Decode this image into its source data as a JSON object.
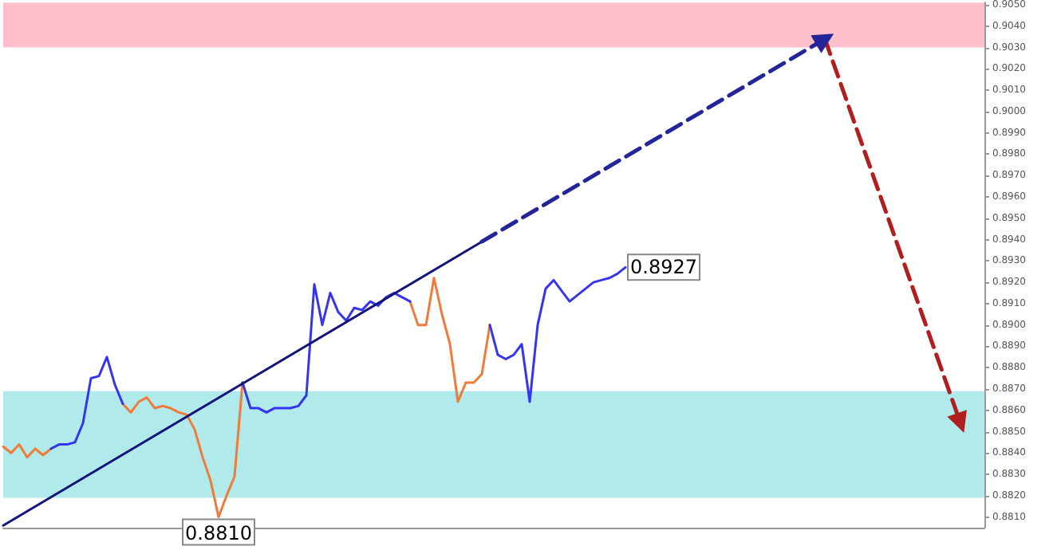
{
  "chart_data": {
    "type": "line",
    "tick_labels": "y",
    "grid": false,
    "categories": [
      null,
      null,
      null,
      null,
      null,
      null,
      null,
      null,
      null,
      null,
      null,
      null,
      null,
      null,
      null,
      null,
      null,
      null,
      null,
      null,
      null,
      null,
      null,
      null,
      null,
      null,
      null,
      null,
      null,
      null,
      null,
      null,
      null,
      null,
      null,
      null,
      null,
      null,
      null,
      null,
      null,
      null,
      null,
      null,
      null,
      null,
      null,
      null,
      null,
      null,
      null,
      null,
      null,
      null,
      null,
      null,
      null,
      null,
      null,
      null,
      null,
      null,
      null,
      null,
      null,
      null,
      null,
      null,
      null,
      null,
      null,
      null,
      null,
      null,
      null,
      null,
      null,
      null,
      null,
      null,
      null,
      null,
      null,
      null,
      null,
      null,
      null,
      null,
      null,
      null,
      null,
      null,
      null,
      null,
      null,
      null,
      null,
      null,
      null,
      null,
      null,
      null,
      null,
      null,
      null,
      null,
      null,
      null,
      null,
      null,
      null,
      null,
      null,
      null,
      null,
      null,
      null,
      null,
      null,
      null,
      null,
      null,
      null,
      null
    ],
    "ylim": [
      0.8805,
      0.9051
    ],
    "yticks": [
      {
        "value": 0.881,
        "label": "0.8810"
      },
      {
        "value": 0.882,
        "label": "0.8820"
      },
      {
        "value": 0.883,
        "label": "0.8830"
      },
      {
        "value": 0.884,
        "label": "0.8840"
      },
      {
        "value": 0.885,
        "label": "0.8850"
      },
      {
        "value": 0.886,
        "label": "0.8860"
      },
      {
        "value": 0.887,
        "label": "0.8870"
      },
      {
        "value": 0.888,
        "label": "0.8880"
      },
      {
        "value": 0.889,
        "label": "0.8890"
      },
      {
        "value": 0.89,
        "label": "0.8900"
      },
      {
        "value": 0.891,
        "label": "0.8910"
      },
      {
        "value": 0.892,
        "label": "0.8920"
      },
      {
        "value": 0.893,
        "label": "0.8930"
      },
      {
        "value": 0.894,
        "label": "0.8940"
      },
      {
        "value": 0.895,
        "label": "0.8950"
      },
      {
        "value": 0.896,
        "label": "0.8960"
      },
      {
        "value": 0.897,
        "label": "0.8970"
      },
      {
        "value": 0.898,
        "label": "0.8980"
      },
      {
        "value": 0.899,
        "label": "0.8990"
      },
      {
        "value": 0.9,
        "label": "0.9000"
      },
      {
        "value": 0.901,
        "label": "0.9010"
      },
      {
        "value": 0.902,
        "label": "0.9020"
      },
      {
        "value": 0.903,
        "label": "0.9030"
      },
      {
        "value": 0.904,
        "label": "0.9040"
      },
      {
        "value": 0.905,
        "label": "0.9050"
      }
    ],
    "bands": [
      {
        "axis": "y",
        "from": 0.903,
        "to": 0.9051,
        "color": "#ffc0cb"
      },
      {
        "axis": "y",
        "from": 0.8819,
        "to": 0.8869,
        "color": "#b0eaea"
      }
    ],
    "series": [
      {
        "color": "#f07a3a",
        "line_style": "solid",
        "marker": "none",
        "values": [
          0.8843,
          0.884,
          0.8844,
          0.8838,
          0.8842,
          0.8839,
          0.8842,
          null,
          null,
          null,
          null,
          null,
          null,
          null,
          null,
          0.8863,
          0.8859,
          0.8864,
          0.8866,
          0.8861,
          0.8862,
          0.8861,
          0.8859,
          0.8858,
          0.8851,
          0.8838,
          0.8827,
          0.881,
          0.882,
          0.8829,
          0.8873,
          null,
          null,
          null,
          null,
          null,
          null,
          null,
          null,
          null,
          null,
          null,
          null,
          null,
          null,
          null,
          null,
          null,
          null,
          null,
          null,
          0.8911,
          0.89,
          0.89,
          0.8922,
          0.8905,
          0.8891,
          0.8864,
          0.8873,
          0.8873,
          0.8877,
          0.89,
          null,
          null,
          null,
          null,
          null,
          null,
          null,
          null,
          null,
          null,
          null,
          null,
          null,
          null,
          null,
          null,
          null,
          null,
          null,
          null,
          null,
          null,
          null,
          null,
          null,
          null,
          null,
          null,
          null,
          null,
          null,
          null,
          null,
          null,
          null,
          null,
          null,
          null,
          null,
          null,
          null,
          null,
          null,
          null,
          null,
          null,
          null,
          null,
          null,
          null,
          null,
          null,
          null,
          null,
          null,
          null,
          null,
          null,
          null,
          null,
          null,
          null
        ],
        "value_labels": [
          null,
          null,
          null,
          null,
          null,
          null,
          null,
          null,
          null,
          null,
          null,
          null,
          null,
          null,
          null,
          null,
          null,
          null,
          null,
          null,
          null,
          null,
          null,
          null,
          null,
          null,
          null,
          "0.8810",
          null,
          null,
          null,
          null,
          null,
          null,
          null,
          null,
          null,
          null,
          null,
          null,
          null,
          null,
          null,
          null,
          null,
          null,
          null,
          null,
          null,
          null,
          null,
          null,
          null,
          null,
          null,
          null,
          null,
          null,
          null,
          null,
          null,
          null,
          null,
          null,
          null,
          null,
          null,
          null,
          null,
          null,
          null,
          null,
          null,
          null,
          null,
          null,
          null,
          null,
          null,
          null,
          null,
          null,
          null,
          null,
          null,
          null,
          null,
          null,
          null,
          null,
          null,
          null,
          null,
          null,
          null,
          null,
          null,
          null,
          null,
          null,
          null,
          null,
          null,
          null,
          null,
          null,
          null,
          null,
          null,
          null,
          null,
          null,
          null,
          null,
          null,
          null,
          null,
          null,
          null,
          null,
          null,
          null,
          null,
          null
        ]
      },
      {
        "color": "#3535f0",
        "line_style": "solid",
        "marker": "none",
        "values": [
          null,
          null,
          null,
          null,
          null,
          null,
          0.8842,
          0.8844,
          0.8844,
          0.8845,
          0.8854,
          0.8875,
          0.8876,
          0.8885,
          0.8872,
          0.8863,
          null,
          null,
          null,
          null,
          null,
          null,
          null,
          null,
          null,
          null,
          null,
          null,
          null,
          null,
          0.8873,
          0.8861,
          0.8861,
          0.8859,
          0.8861,
          0.8861,
          0.8861,
          0.8862,
          0.8867,
          0.8919,
          0.89,
          0.8915,
          0.8906,
          0.8902,
          0.8908,
          0.8907,
          0.8911,
          0.8909,
          0.8913,
          0.8915,
          0.8913,
          0.8911,
          null,
          null,
          null,
          null,
          null,
          null,
          null,
          null,
          null,
          0.89,
          0.8886,
          0.8884,
          0.8886,
          0.8891,
          0.8864,
          0.89,
          0.8917,
          0.8921,
          0.8916,
          0.8911,
          0.8914,
          0.8917,
          0.892,
          0.8921,
          0.8922,
          0.8924,
          0.8927,
          null,
          null,
          null,
          null,
          null,
          null,
          null,
          null,
          null,
          null,
          null,
          null,
          null,
          null,
          null,
          null,
          null,
          null,
          null,
          null,
          null,
          null,
          null,
          null,
          null,
          null,
          null,
          null,
          null,
          null,
          null,
          null,
          null,
          null,
          null,
          null,
          null,
          null,
          null,
          null,
          null,
          null,
          null,
          null,
          null
        ],
        "value_labels": [
          null,
          null,
          null,
          null,
          null,
          null,
          null,
          null,
          null,
          null,
          null,
          null,
          null,
          null,
          null,
          null,
          null,
          null,
          null,
          null,
          null,
          null,
          null,
          null,
          null,
          null,
          null,
          null,
          null,
          null,
          null,
          null,
          null,
          null,
          null,
          null,
          null,
          null,
          null,
          null,
          null,
          null,
          null,
          null,
          null,
          null,
          null,
          null,
          null,
          null,
          null,
          null,
          null,
          null,
          null,
          null,
          null,
          null,
          null,
          null,
          null,
          null,
          null,
          null,
          null,
          null,
          null,
          null,
          null,
          null,
          null,
          null,
          null,
          null,
          null,
          null,
          null,
          null,
          "0.8927",
          null,
          null,
          null,
          null,
          null,
          null,
          null,
          null,
          null,
          null,
          null,
          null,
          null,
          null,
          null,
          null,
          null,
          null,
          null,
          null,
          null,
          null,
          null,
          null,
          null,
          null,
          null,
          null,
          null,
          null,
          null,
          null,
          null,
          null,
          null,
          null,
          null,
          null,
          null,
          null,
          null,
          null,
          null,
          null,
          null
        ]
      },
      {
        "color": "#14147a",
        "line_style": "solid",
        "marker": "none",
        "values": [
          0.8806,
          null,
          null,
          null,
          null,
          null,
          null,
          null,
          null,
          null,
          null,
          null,
          null,
          null,
          null,
          null,
          null,
          null,
          null,
          null,
          null,
          null,
          null,
          null,
          null,
          null,
          null,
          null,
          null,
          null,
          null,
          null,
          null,
          null,
          null,
          null,
          null,
          null,
          null,
          null,
          null,
          null,
          null,
          null,
          null,
          null,
          null,
          null,
          null,
          null,
          null,
          null,
          null,
          null,
          null,
          null,
          null,
          null,
          null,
          null,
          0.8939,
          null,
          null,
          null,
          null,
          null,
          null,
          null,
          null,
          null,
          null,
          null,
          null,
          null,
          null,
          null,
          null,
          null,
          null,
          null,
          null,
          null,
          null,
          null,
          null,
          null,
          null,
          null,
          null,
          null,
          null,
          null,
          null,
          null,
          null,
          null,
          null,
          null,
          null,
          null,
          null,
          null,
          null,
          null,
          null,
          null,
          null,
          null,
          null,
          null,
          null,
          null,
          null,
          null,
          null,
          null,
          null,
          null,
          null,
          null,
          null,
          null,
          null,
          null
        ]
      },
      {
        "color": "#25259a",
        "line_style": "dashed",
        "marker": "triangle",
        "values": [
          null,
          null,
          null,
          null,
          null,
          null,
          null,
          null,
          null,
          null,
          null,
          null,
          null,
          null,
          null,
          null,
          null,
          null,
          null,
          null,
          null,
          null,
          null,
          null,
          null,
          null,
          null,
          null,
          null,
          null,
          null,
          null,
          null,
          null,
          null,
          null,
          null,
          null,
          null,
          null,
          null,
          null,
          null,
          null,
          null,
          null,
          null,
          null,
          null,
          null,
          null,
          null,
          null,
          null,
          null,
          null,
          null,
          null,
          null,
          null,
          0.8939,
          null,
          null,
          null,
          null,
          null,
          null,
          null,
          null,
          null,
          null,
          null,
          null,
          null,
          null,
          null,
          null,
          null,
          null,
          null,
          null,
          null,
          null,
          null,
          null,
          null,
          null,
          null,
          null,
          null,
          null,
          null,
          null,
          null,
          null,
          null,
          null,
          null,
          null,
          null,
          null,
          null,
          null,
          0.9034,
          null,
          null,
          null,
          null,
          null,
          null,
          null,
          null,
          null,
          null,
          null,
          null,
          null,
          null,
          null,
          null,
          null,
          null,
          null,
          null
        ]
      },
      {
        "color": "#b01e1e",
        "line_style": "dashed",
        "marker": "triangle",
        "values": [
          null,
          null,
          null,
          null,
          null,
          null,
          null,
          null,
          null,
          null,
          null,
          null,
          null,
          null,
          null,
          null,
          null,
          null,
          null,
          null,
          null,
          null,
          null,
          null,
          null,
          null,
          null,
          null,
          null,
          null,
          null,
          null,
          null,
          null,
          null,
          null,
          null,
          null,
          null,
          null,
          null,
          null,
          null,
          null,
          null,
          null,
          null,
          null,
          null,
          null,
          null,
          null,
          null,
          null,
          null,
          null,
          null,
          null,
          null,
          null,
          null,
          null,
          null,
          null,
          null,
          null,
          null,
          null,
          null,
          null,
          null,
          null,
          null,
          null,
          null,
          null,
          null,
          null,
          null,
          null,
          null,
          null,
          null,
          null,
          null,
          null,
          null,
          null,
          null,
          null,
          null,
          null,
          null,
          null,
          null,
          null,
          null,
          null,
          null,
          null,
          null,
          null,
          null,
          0.9034,
          null,
          null,
          null,
          null,
          null,
          null,
          null,
          null,
          null,
          null,
          null,
          null,
          null,
          null,
          null,
          null,
          0.8854,
          null,
          null,
          null
        ]
      }
    ]
  }
}
